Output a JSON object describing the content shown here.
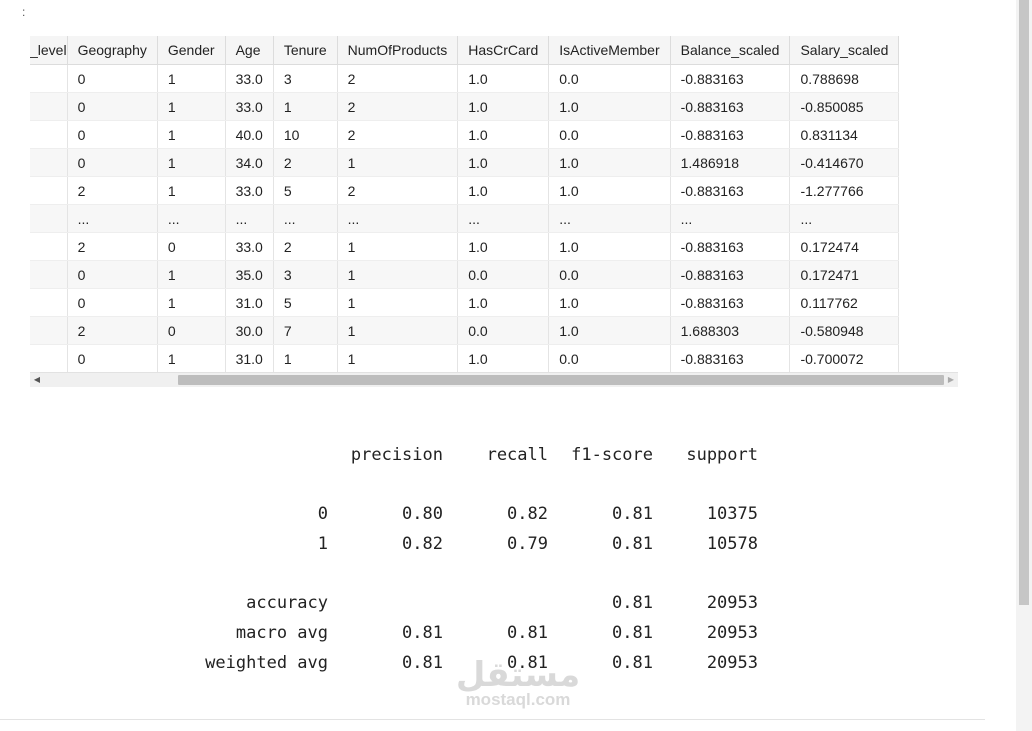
{
  "prompt_marker": ":",
  "dataframe": {
    "columns": [
      "_level",
      "Geography",
      "Gender",
      "Age",
      "Tenure",
      "NumOfProducts",
      "HasCrCard",
      "IsActiveMember",
      "Balance_scaled",
      "Salary_scaled"
    ],
    "rows": [
      [
        "",
        "0",
        "1",
        "33.0",
        "3",
        "2",
        "1.0",
        "0.0",
        "-0.883163",
        "0.788698"
      ],
      [
        "",
        "0",
        "1",
        "33.0",
        "1",
        "2",
        "1.0",
        "1.0",
        "-0.883163",
        "-0.850085"
      ],
      [
        "",
        "0",
        "1",
        "40.0",
        "10",
        "2",
        "1.0",
        "0.0",
        "-0.883163",
        "0.831134"
      ],
      [
        "",
        "0",
        "1",
        "34.0",
        "2",
        "1",
        "1.0",
        "1.0",
        "1.486918",
        "-0.414670"
      ],
      [
        "",
        "2",
        "1",
        "33.0",
        "5",
        "2",
        "1.0",
        "1.0",
        "-0.883163",
        "-1.277766"
      ],
      [
        "",
        "...",
        "...",
        "...",
        "...",
        "...",
        "...",
        "...",
        "...",
        "..."
      ],
      [
        "",
        "2",
        "0",
        "33.0",
        "2",
        "1",
        "1.0",
        "1.0",
        "-0.883163",
        "0.172474"
      ],
      [
        "",
        "0",
        "1",
        "35.0",
        "3",
        "1",
        "0.0",
        "0.0",
        "-0.883163",
        "0.172471"
      ],
      [
        "",
        "0",
        "1",
        "31.0",
        "5",
        "1",
        "1.0",
        "1.0",
        "-0.883163",
        "0.117762"
      ],
      [
        "",
        "2",
        "0",
        "30.0",
        "7",
        "1",
        "0.0",
        "1.0",
        "1.688303",
        "-0.580948"
      ],
      [
        "",
        "0",
        "1",
        "31.0",
        "1",
        "1",
        "1.0",
        "0.0",
        "-0.883163",
        "-0.700072"
      ]
    ]
  },
  "classification_report": {
    "headers": [
      "",
      "precision",
      "recall",
      "f1-score",
      "support"
    ],
    "class_rows": [
      [
        "0",
        "0.80",
        "0.82",
        "0.81",
        "10375"
      ],
      [
        "1",
        "0.82",
        "0.79",
        "0.81",
        "10578"
      ]
    ],
    "summary_rows": [
      [
        "accuracy",
        "",
        "",
        "0.81",
        "20953"
      ],
      [
        "macro avg",
        "0.81",
        "0.81",
        "0.81",
        "20953"
      ],
      [
        "weighted avg",
        "0.81",
        "0.81",
        "0.81",
        "20953"
      ]
    ]
  },
  "watermark": {
    "arabic": "مستقل",
    "latin": "mostaql.com"
  },
  "icons": {
    "scroll_left": "triangle-left-icon",
    "scroll_right": "triangle-right-icon"
  },
  "colors": {
    "header_bg": "#f5f5f5",
    "stripe_bg": "#f7f7f7",
    "scroll_thumb": "#bdbdbd",
    "watermark": "#d9d9d9"
  }
}
